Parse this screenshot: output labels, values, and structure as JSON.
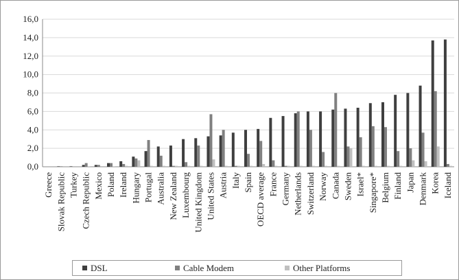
{
  "chart_data": {
    "type": "bar",
    "categories": [
      "Greece",
      "Slovak Republic",
      "Turkey",
      "Czech Republic",
      "Mexico",
      "Poland",
      "Ireland",
      "Hungary",
      "Portugal",
      "Australia",
      "New Zealand",
      "Luxembourg",
      "United Kingdom",
      "United States",
      "Austria",
      "Italy",
      "Spain",
      "OECD average",
      "France",
      "Germany",
      "Netherlands",
      "Switzerland",
      "Norway",
      "Canada",
      "Sweden",
      "Israel*",
      "Singapore*",
      "Belgium",
      "Finland",
      "Japan",
      "Denmark",
      "Korea",
      "Iceland"
    ],
    "series": [
      {
        "name": "DSL",
        "color": "#3f3f3f",
        "values": [
          0,
          0.05,
          0.05,
          0.2,
          0.2,
          0.4,
          0.6,
          1.1,
          1.7,
          2.2,
          2.3,
          3.0,
          3.1,
          3.3,
          3.4,
          3.7,
          4.0,
          4.1,
          5.3,
          5.5,
          5.8,
          6.0,
          6.0,
          6.2,
          6.3,
          6.4,
          6.9,
          7.0,
          7.8,
          8.0,
          8.8,
          13.7,
          13.8
        ]
      },
      {
        "name": "Cable Modem",
        "color": "#808080",
        "values": [
          0,
          0.05,
          0,
          0.4,
          0.2,
          0.4,
          0.3,
          0.9,
          2.9,
          1.2,
          0.1,
          0.5,
          2.3,
          5.7,
          4.0,
          0.1,
          1.4,
          2.8,
          0.7,
          0.1,
          6.0,
          4.0,
          1.6,
          8.0,
          2.2,
          3.2,
          4.4,
          4.3,
          1.7,
          2.0,
          3.7,
          8.2,
          0.3
        ]
      },
      {
        "name": "Other Platforms",
        "color": "#c0c0c0",
        "values": [
          0,
          0,
          0,
          0.05,
          0,
          0.05,
          0.1,
          0.7,
          0.1,
          0.1,
          0.1,
          0.1,
          0.1,
          0.8,
          0.1,
          0.1,
          0.1,
          0.3,
          0.1,
          0.1,
          0.1,
          0.1,
          0.1,
          0.1,
          2.0,
          0.1,
          0.1,
          0.1,
          0.1,
          0.7,
          0.6,
          2.2,
          0.1
        ]
      }
    ],
    "ylim": [
      0,
      16
    ],
    "yticks": [
      {
        "value": 0,
        "label": "0,0"
      },
      {
        "value": 2,
        "label": "2,0"
      },
      {
        "value": 4,
        "label": "4,0"
      },
      {
        "value": 6,
        "label": "6,0"
      },
      {
        "value": 8,
        "label": "8,0"
      },
      {
        "value": 10,
        "label": "10,0"
      },
      {
        "value": 12,
        "label": "12,0"
      },
      {
        "value": 14,
        "label": "14,0"
      },
      {
        "value": 16,
        "label": "16,0"
      }
    ],
    "grid": true,
    "legend": "bottom"
  }
}
